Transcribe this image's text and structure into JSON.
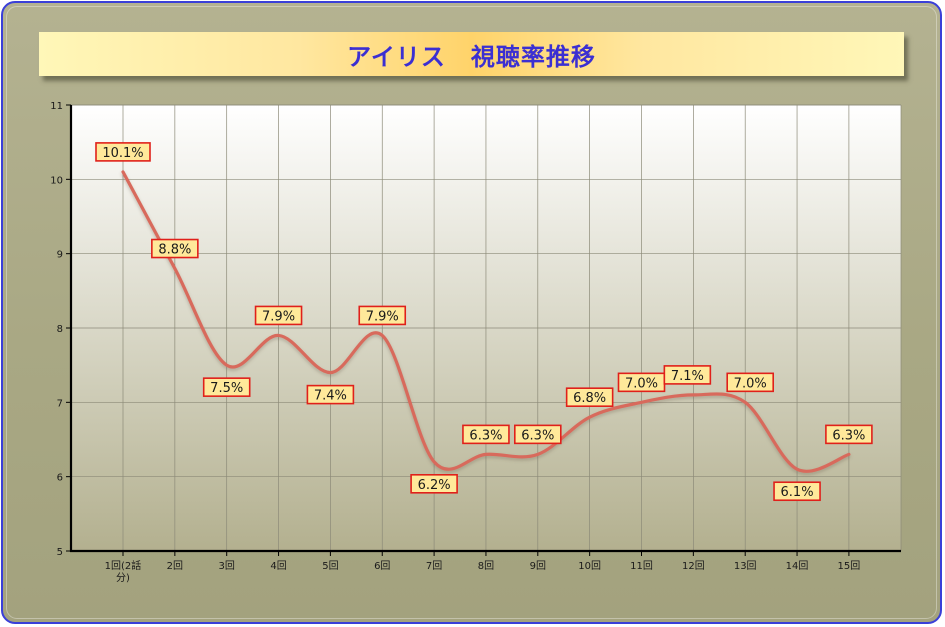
{
  "chart_data": {
    "type": "line",
    "title": "アイリス　視聴率推移",
    "xlabel": "",
    "ylabel": "",
    "categories": [
      "1回(2話分)",
      "2回",
      "3回",
      "4回",
      "5回",
      "6回",
      "7回",
      "8回",
      "9回",
      "10回",
      "11回",
      "12回",
      "13回",
      "14回",
      "15回"
    ],
    "series": [
      {
        "values": [
          10.1,
          8.8,
          7.5,
          7.9,
          7.4,
          7.9,
          6.2,
          6.3,
          6.3,
          6.8,
          7.0,
          7.1,
          7.0,
          6.1,
          6.3
        ],
        "data_labels": [
          "10.1%",
          "8.8%",
          "7.5%",
          "7.9%",
          "7.4%",
          "7.9%",
          "6.2%",
          "6.3%",
          "6.3%",
          "6.8%",
          "7.0%",
          "7.1%",
          "7.0%",
          "6.1%",
          "6.3%"
        ],
        "color": "#d86a5c"
      }
    ],
    "ylim": [
      5,
      11
    ],
    "yticks": [
      "5",
      "6",
      "7",
      "8",
      "9",
      "10",
      "11"
    ],
    "grid": true,
    "legend": "none",
    "smooth": true
  },
  "colors": {
    "title_text": "#3b2fd2",
    "line": "#d86a5c",
    "label_fill": "#ffe99a",
    "label_border": "#e0201a",
    "frame_border": "#3a3fd8"
  }
}
